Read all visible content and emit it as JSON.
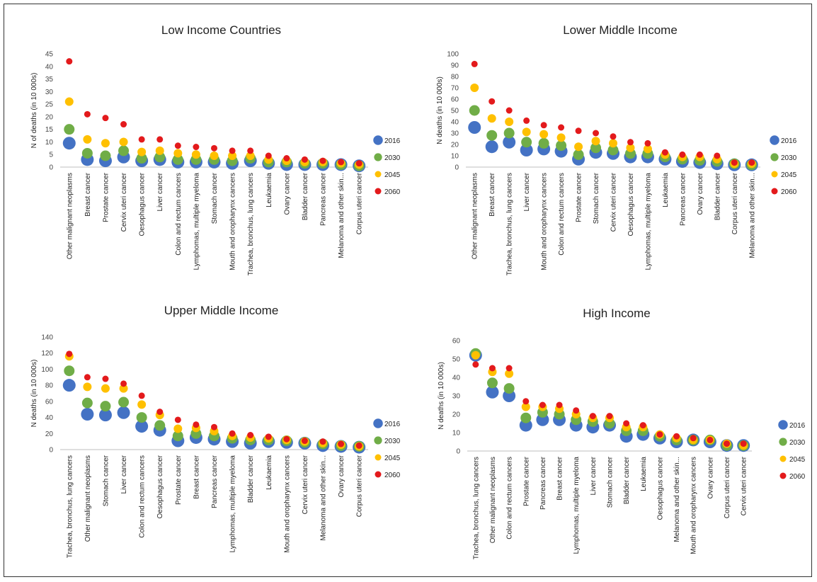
{
  "chart_data": [
    {
      "type": "scatter",
      "title": "Low Income Countries",
      "ylabel": "N of deaths (in 10 000s)",
      "ylim": [
        0,
        45
      ],
      "ystep": 5,
      "legend_position": "right",
      "grid": false,
      "categories": [
        "Other malignant neoplasms",
        "Breast cancer",
        "Prostate cancer",
        "Cervix uteri cancer",
        "Oesophagus cancer",
        "Liver cancer",
        "Colon and rectum cancers",
        "Lymphomas, multiple myeloma",
        "Stomach cancer",
        "Mouth and oropharynx cancers",
        "Trachea, bronchus, lung cancers",
        "Leukaemia",
        "Ovary cancer",
        "Bladder cancer",
        "Pancreas cancer",
        "Melanoma and other skin...",
        "Corpus uteri cancer"
      ],
      "series": [
        {
          "name": "2016",
          "values": [
            9.5,
            3,
            2.5,
            4,
            2.5,
            3,
            2,
            2,
            2,
            1.5,
            2.5,
            1.5,
            1,
            1,
            1,
            1,
            0.5
          ]
        },
        {
          "name": "2030",
          "values": [
            15,
            5.5,
            4.5,
            6.5,
            3.5,
            4,
            3,
            3,
            3,
            2.5,
            3.5,
            2,
            2,
            1.5,
            1.5,
            1,
            0.5
          ]
        },
        {
          "name": "2045",
          "values": [
            26,
            11,
            9.5,
            10,
            6,
            6.5,
            5.5,
            5,
            4.5,
            4.5,
            4.5,
            3,
            2.5,
            2,
            2,
            1.5,
            1
          ]
        },
        {
          "name": "2060",
          "values": [
            42,
            21,
            19.5,
            17,
            11,
            11,
            8.5,
            8,
            7.5,
            6.5,
            6.5,
            4.5,
            3.5,
            3,
            2.5,
            2,
            1.5
          ]
        }
      ]
    },
    {
      "type": "scatter",
      "title": "Lower Middle Income",
      "ylabel": "N deaths (in 10 000s)",
      "ylim": [
        0,
        100
      ],
      "ystep": 10,
      "legend_position": "right",
      "grid": false,
      "categories": [
        "Other malignant neoplasms",
        "Breast cancer",
        "Trachea, bronchus, lung cancers",
        "Liver cancer",
        "Mouth and oropharynx cancers",
        "Colon and rectum cancers",
        "Prostate cancer",
        "Stomach cancer",
        "Cervix uteri cancer",
        "Oesophagus cancer",
        "Lymphomas, multiple myeloma",
        "Leukaemia",
        "Pancreas cancer",
        "Ovary cancer",
        "Bladder cancer",
        "Corpus uteri cancer",
        "Melanoma and other skin..."
      ],
      "series": [
        {
          "name": "2016",
          "values": [
            35,
            18,
            22,
            15,
            16,
            14,
            7,
            13,
            12,
            9,
            9,
            7,
            5,
            4,
            3,
            2,
            2
          ]
        },
        {
          "name": "2030",
          "values": [
            50,
            28,
            30,
            22,
            21,
            19,
            11,
            17,
            15,
            12,
            12,
            9,
            7,
            6,
            5,
            3,
            2
          ]
        },
        {
          "name": "2045",
          "values": [
            70,
            43,
            40,
            31,
            29,
            26,
            18,
            23,
            21,
            17,
            16,
            11,
            9,
            9,
            7,
            3,
            3
          ]
        },
        {
          "name": "2060",
          "values": [
            91,
            58,
            50,
            41,
            37,
            35,
            32,
            30,
            27,
            22,
            21,
            13,
            11,
            11,
            10,
            4,
            4
          ]
        }
      ]
    },
    {
      "type": "scatter",
      "title": "Upper Middle Income",
      "ylabel": "N deaths (in 10 000s)",
      "ylim": [
        0,
        140
      ],
      "ystep": 20,
      "legend_position": "right",
      "grid": false,
      "categories": [
        "Trachea, bronchus, lung cancers",
        "Other malignant neoplasms",
        "Stomach cancer",
        "Liver cancer",
        "Colon and rectum cancers",
        "Oesophagus cancer",
        "Prostate cancer",
        "Breast cancer",
        "Pancreas cancer",
        "Lymphomas, multiple myeloma",
        "Bladder cancer",
        "Leukaemia",
        "Mouth and oropharynx cancers",
        "Cervix uteri cancer",
        "Melanoma and other skin...",
        "Ovary cancer",
        "Corpus uteri cancer"
      ],
      "series": [
        {
          "name": "2016",
          "values": [
            80,
            44,
            43,
            46,
            29,
            24,
            11,
            15,
            13,
            10,
            8,
            10,
            9,
            8,
            5,
            4,
            3
          ]
        },
        {
          "name": "2030",
          "values": [
            98,
            58,
            54,
            59,
            40,
            30,
            17,
            20,
            17,
            14,
            12,
            12,
            11,
            9,
            7,
            5,
            4
          ]
        },
        {
          "name": "2045",
          "values": [
            116,
            78,
            76,
            76,
            56,
            43,
            26,
            27,
            23,
            17,
            15,
            14,
            12,
            10,
            8,
            6,
            4
          ]
        },
        {
          "name": "2060",
          "values": [
            119,
            90,
            88,
            82,
            67,
            47,
            37,
            31,
            28,
            20,
            18,
            16,
            13,
            11,
            10,
            7,
            5
          ]
        }
      ]
    },
    {
      "type": "scatter",
      "title": "High Income",
      "ylabel": "N deaths (in 10 000s)",
      "ylim": [
        0,
        60
      ],
      "ystep": 10,
      "legend_position": "right",
      "grid": false,
      "categories": [
        "Trachea, bronchus, lung cancers",
        "Other malignant neoplasms",
        "Colon and rectum cancers",
        "Prostate cancer",
        "Pancreas cancer",
        "Breast cancer",
        "Lymphomas, multiple myeloma",
        "Liver cancer",
        "Stomach cancer",
        "Bladder cancer",
        "Leukaemia",
        "Oesophagus cancer",
        "Melanoma and other skin...",
        "Mouth and oropharynx cancers",
        "Ovary cancer",
        "Corpus uteri cancer",
        "Cervix uteri cancer"
      ],
      "series": [
        {
          "name": "2016",
          "values": [
            52,
            32,
            30,
            14,
            17,
            17,
            14,
            13,
            14,
            8,
            9,
            7,
            5,
            6,
            5,
            3,
            3
          ]
        },
        {
          "name": "2030",
          "values": [
            53,
            37,
            34,
            18,
            21,
            20,
            17,
            16,
            15,
            11,
            11,
            8,
            6,
            6,
            6,
            3,
            3
          ]
        },
        {
          "name": "2045",
          "values": [
            52,
            43,
            42,
            24,
            24,
            23,
            20,
            18,
            18,
            13,
            13,
            9,
            7,
            6,
            6,
            4,
            3
          ]
        },
        {
          "name": "2060",
          "values": [
            47,
            45,
            45,
            27,
            25,
            25,
            22,
            19,
            19,
            15,
            14,
            9,
            8,
            7,
            6,
            4,
            4
          ]
        }
      ]
    }
  ],
  "colors": {
    "2016": "#4472C4",
    "2030": "#70AD47",
    "2045": "#FFC000",
    "2060": "#E31A1C"
  }
}
